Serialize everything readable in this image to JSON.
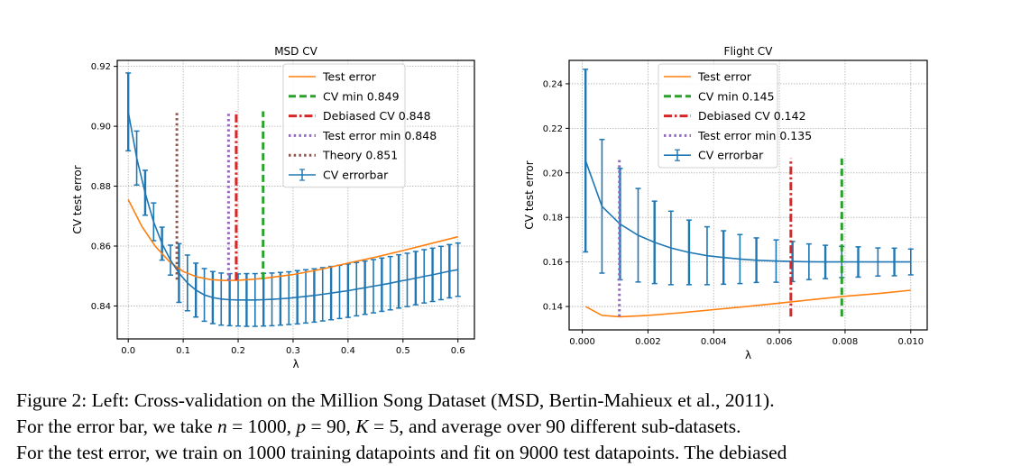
{
  "chart_data": [
    {
      "type": "line",
      "title": "MSD CV",
      "xlabel": "λ",
      "ylabel": "CV test error",
      "xlim": [
        -0.02,
        0.63
      ],
      "ylim": [
        0.829,
        0.922
      ],
      "xticks": [
        0.0,
        0.1,
        0.2,
        0.3,
        0.4,
        0.5,
        0.6
      ],
      "xtick_labels": [
        "0.0",
        "0.1",
        "0.2",
        "0.3",
        "0.4",
        "0.5",
        "0.6"
      ],
      "yticks": [
        0.84,
        0.86,
        0.88,
        0.9,
        0.92
      ],
      "ytick_labels": [
        "0.84",
        "0.86",
        "0.88",
        "0.90",
        "0.92"
      ],
      "grid": true,
      "legend_position": "top-right",
      "legend": [
        "Test error",
        "CV min 0.849",
        "Debiased CV 0.848",
        "Test error min 0.848",
        "Theory 0.851",
        "CV errorbar"
      ],
      "series": [
        {
          "name": "Test error",
          "kind": "line",
          "color": "#ff7f0e",
          "x": [
            0.0,
            0.025,
            0.05,
            0.075,
            0.1,
            0.125,
            0.15,
            0.175,
            0.2,
            0.225,
            0.25,
            0.3,
            0.35,
            0.4,
            0.45,
            0.5,
            0.55,
            0.6
          ],
          "y": [
            0.8755,
            0.8665,
            0.8598,
            0.8548,
            0.8515,
            0.8497,
            0.8488,
            0.8485,
            0.8486,
            0.8489,
            0.8493,
            0.8505,
            0.8522,
            0.8543,
            0.8563,
            0.8585,
            0.8608,
            0.8631
          ]
        },
        {
          "name": "CV errorbar",
          "kind": "errorbar",
          "color": "#1f77b4",
          "x": [
            0.0,
            0.0154,
            0.0308,
            0.0462,
            0.0615,
            0.0769,
            0.0923,
            0.1077,
            0.1231,
            0.1385,
            0.1538,
            0.1692,
            0.1846,
            0.2,
            0.2154,
            0.2308,
            0.2462,
            0.2615,
            0.2769,
            0.2923,
            0.3077,
            0.3231,
            0.3385,
            0.3538,
            0.3692,
            0.3846,
            0.4,
            0.4154,
            0.4308,
            0.4462,
            0.4615,
            0.4769,
            0.4923,
            0.5077,
            0.5231,
            0.5385,
            0.5538,
            0.5692,
            0.5846,
            0.6
          ],
          "y": [
            0.9048,
            0.8894,
            0.8778,
            0.8681,
            0.8608,
            0.8553,
            0.851,
            0.8477,
            0.8453,
            0.8437,
            0.8428,
            0.8423,
            0.8421,
            0.842,
            0.842,
            0.842,
            0.8421,
            0.8422,
            0.8424,
            0.8426,
            0.8429,
            0.8432,
            0.8435,
            0.8439,
            0.8443,
            0.8447,
            0.8451,
            0.8456,
            0.8461,
            0.8466,
            0.8471,
            0.8476,
            0.8482,
            0.8487,
            0.8493,
            0.8499,
            0.8504,
            0.851,
            0.8516,
            0.8521
          ],
          "err": [
            0.013,
            0.009,
            0.0075,
            0.0063,
            0.0055,
            0.005,
            0.0098,
            0.0093,
            0.009,
            0.0088,
            0.0087,
            0.0087,
            0.0087,
            0.0087,
            0.0088,
            0.0088,
            0.0088,
            0.0088,
            0.0088,
            0.0088,
            0.0089,
            0.0089,
            0.0089,
            0.0089,
            0.0089,
            0.0089,
            0.0089,
            0.0089,
            0.0089,
            0.0089,
            0.0089,
            0.0089,
            0.0089,
            0.0089,
            0.0089,
            0.0089,
            0.0089,
            0.0089,
            0.0089,
            0.0089
          ]
        }
      ],
      "vlines": [
        {
          "name": "CV min 0.849",
          "x": 0.2455,
          "ymin": 0.8489,
          "ymax": 0.905,
          "color": "#2ca02c",
          "style": "dashed"
        },
        {
          "name": "Debiased CV 0.848",
          "x": 0.1965,
          "ymin": 0.8486,
          "ymax": 0.905,
          "color": "#d62728",
          "style": "dashdot"
        },
        {
          "name": "Test error min 0.848",
          "x": 0.1825,
          "ymin": 0.8485,
          "ymax": 0.905,
          "color": "#9467bd",
          "style": "dotted"
        },
        {
          "name": "Theory 0.851",
          "x": 0.0885,
          "ymin": 0.8488,
          "ymax": 0.905,
          "color": "#8c564b",
          "style": "dotted"
        }
      ]
    },
    {
      "type": "line",
      "title": "Flight CV",
      "xlabel": "λ",
      "ylabel": "CV test error",
      "xlim": [
        -0.0004,
        0.0105
      ],
      "ylim": [
        0.1295,
        0.2505
      ],
      "xticks": [
        0.0,
        0.002,
        0.004,
        0.006,
        0.008,
        0.01
      ],
      "xtick_labels": [
        "0.000",
        "0.002",
        "0.004",
        "0.006",
        "0.008",
        "0.010"
      ],
      "yticks": [
        0.14,
        0.16,
        0.18,
        0.2,
        0.22,
        0.24
      ],
      "ytick_labels": [
        "0.14",
        "0.16",
        "0.18",
        "0.20",
        "0.22",
        "0.24"
      ],
      "grid": true,
      "legend_position": "top-center",
      "legend": [
        "Test error",
        "CV min 0.145",
        "Debiased CV 0.142",
        "Test error min 0.135",
        "CV errorbar"
      ],
      "series": [
        {
          "name": "Test error",
          "kind": "line",
          "color": "#ff7f0e",
          "x": [
            0.0001,
            0.0006,
            0.00115,
            0.002,
            0.003,
            0.004,
            0.005,
            0.006,
            0.007,
            0.008,
            0.009,
            0.01
          ],
          "y": [
            0.14,
            0.136,
            0.1354,
            0.136,
            0.1372,
            0.1386,
            0.14,
            0.1415,
            0.1431,
            0.1446,
            0.1458,
            0.1473
          ]
        },
        {
          "name": "CV errorbar",
          "kind": "errorbar",
          "color": "#1f77b4",
          "x": [
            0.0001,
            0.0006,
            0.00115,
            0.0017,
            0.0022,
            0.0027,
            0.00325,
            0.0038,
            0.0043,
            0.0048,
            0.0053,
            0.0059,
            0.0064,
            0.0069,
            0.0074,
            0.0079,
            0.0084,
            0.009,
            0.0095,
            0.01
          ],
          "y": [
            0.2055,
            0.185,
            0.177,
            0.172,
            0.1688,
            0.1663,
            0.1643,
            0.1628,
            0.162,
            0.1613,
            0.1608,
            0.1604,
            0.1602,
            0.1601,
            0.16,
            0.16,
            0.16,
            0.16,
            0.16,
            0.16
          ],
          "err": [
            0.041,
            0.03,
            0.025,
            0.021,
            0.0185,
            0.0165,
            0.0145,
            0.013,
            0.012,
            0.011,
            0.01,
            0.0095,
            0.009,
            0.008,
            0.0075,
            0.007,
            0.0068,
            0.0063,
            0.0062,
            0.0058
          ]
        }
      ],
      "vlines": [
        {
          "name": "CV min 0.145",
          "x": 0.0079,
          "ymin": 0.1355,
          "ymax": 0.2065,
          "color": "#2ca02c",
          "style": "dashed"
        },
        {
          "name": "Debiased CV 0.142",
          "x": 0.00635,
          "ymin": 0.1355,
          "ymax": 0.2065,
          "color": "#d62728",
          "style": "dashdot"
        },
        {
          "name": "Test error min 0.135",
          "x": 0.00113,
          "ymin": 0.1355,
          "ymax": 0.2065,
          "color": "#9467bd",
          "style": "dotted"
        }
      ]
    }
  ],
  "caption": {
    "line1": "Figure 2: Left: Cross-validation on the Million Song Dataset (MSD, Bertin-Mahieux et al., 2011).",
    "line2_pre": "For the error bar, we take ",
    "line2_n": "n",
    "line2_n_val": " = 1000, ",
    "line2_p": "p",
    "line2_p_val": " = 90, ",
    "line2_k": "K",
    "line2_k_val": " = 5, and average over 90 different sub-datasets.",
    "line3": "For the test error, we train on 1000 training datapoints and fit on 9000 test datapoints. The debiased"
  }
}
